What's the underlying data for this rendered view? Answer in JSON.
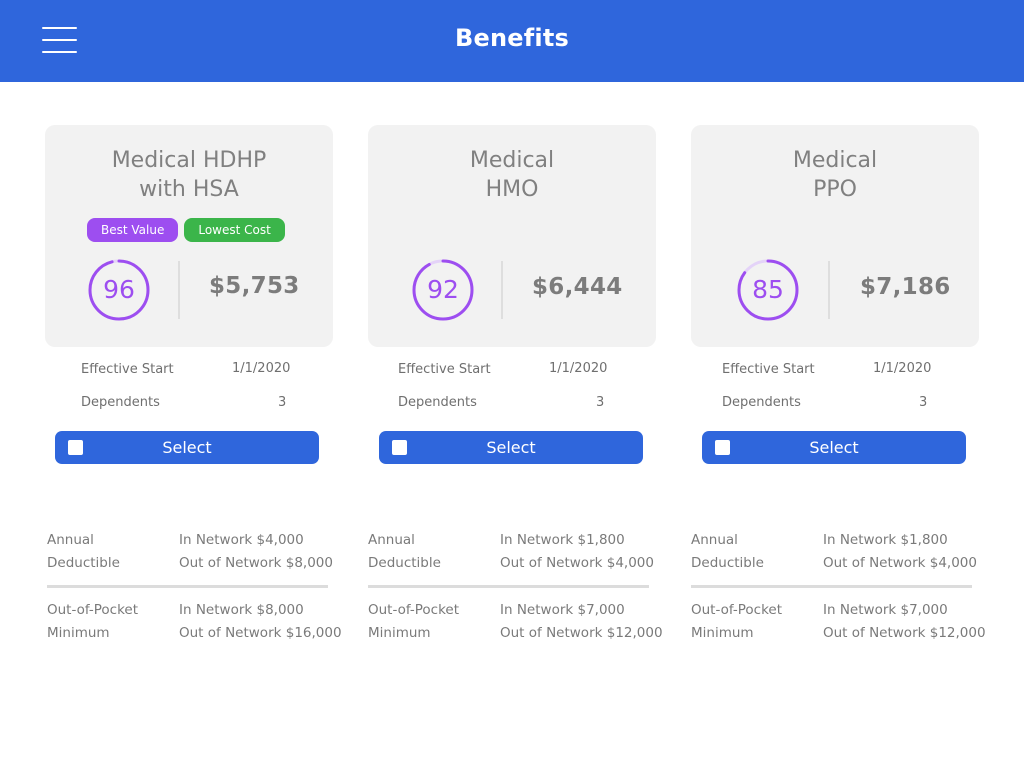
{
  "header": {
    "title": "Benefits",
    "menu_icon": "hamburger-menu-icon"
  },
  "colors": {
    "brand_blue": "#2f66dc",
    "score_purple": "#9d4ef0",
    "best_value": "#9d4ef0",
    "lowest_cost": "#3bb54a"
  },
  "labels": {
    "effective_start": "Effective Start",
    "dependents": "Dependents",
    "annual_deductible": [
      "Annual",
      "Deductible"
    ],
    "out_of_pocket": [
      "Out-of-Pocket",
      "Minimum"
    ],
    "select": "Select"
  },
  "plans": [
    {
      "name_lines": [
        "Medical HDHP",
        "with HSA"
      ],
      "badges": [
        "Best Value",
        "Lowest Cost"
      ],
      "score": "96",
      "score_fraction": 0.96,
      "price": "$5,753",
      "effective_start": "1/1/2020",
      "dependents": "3",
      "deductible": [
        "In Network $4,000",
        "Out of Network $8,000"
      ],
      "out_of_pocket": [
        "In Network $8,000",
        "Out of Network $16,000"
      ]
    },
    {
      "name_lines": [
        "Medical",
        "HMO"
      ],
      "badges": [],
      "score": "92",
      "score_fraction": 0.92,
      "price": "$6,444",
      "effective_start": "1/1/2020",
      "dependents": "3",
      "deductible": [
        "In Network $1,800",
        "Out of Network $4,000"
      ],
      "out_of_pocket": [
        "In Network $7,000",
        "Out of Network $12,000"
      ]
    },
    {
      "name_lines": [
        "Medical",
        "PPO"
      ],
      "badges": [],
      "score": "85",
      "score_fraction": 0.85,
      "price": "$7,186",
      "effective_start": "1/1/2020",
      "dependents": "3",
      "deductible": [
        "In Network $1,800",
        "Out of Network $4,000"
      ],
      "out_of_pocket": [
        "In Network $7,000",
        "Out of Network $12,000"
      ]
    }
  ]
}
